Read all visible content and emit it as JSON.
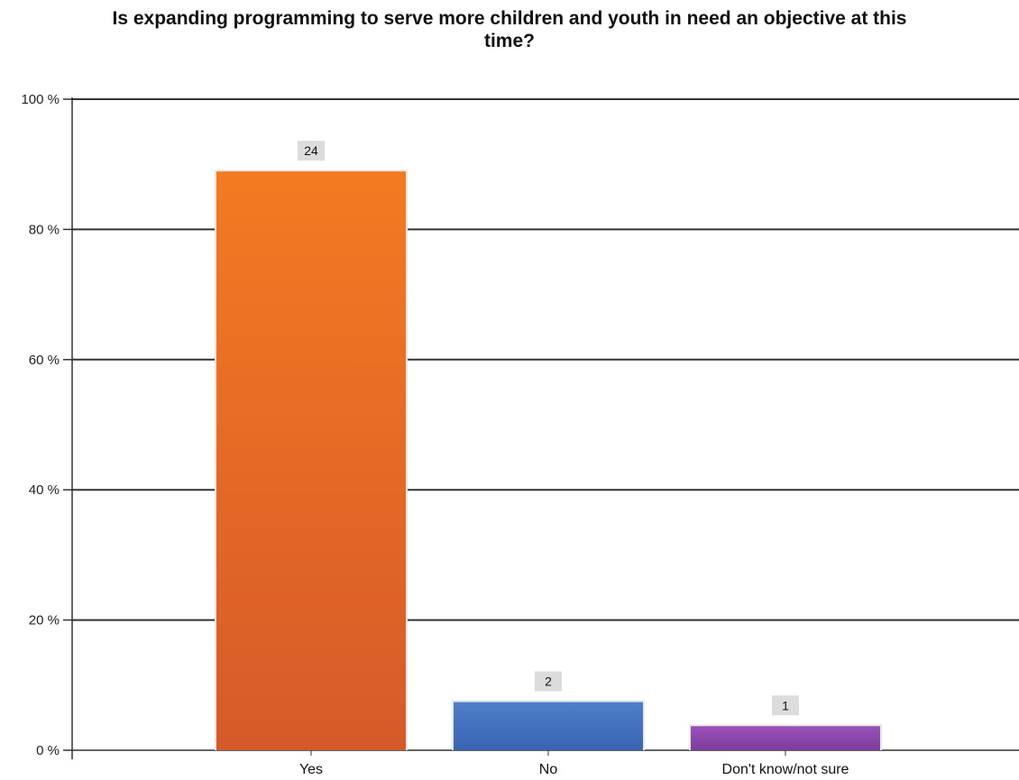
{
  "chart_data": {
    "type": "bar",
    "title_lines": [
      "Is expanding programming to serve more children and youth in need an objective at this",
      "time?"
    ],
    "categories": [
      "Yes",
      "No",
      "Don't know/not sure"
    ],
    "counts": [
      24,
      2,
      1
    ],
    "values": [
      88.9,
      7.4,
      3.7
    ],
    "ylim": [
      0,
      100
    ],
    "yticks": [
      0,
      20,
      40,
      60,
      80,
      100
    ],
    "ytick_labels": [
      "0 %",
      "20 %",
      "40 %",
      "60 %",
      "80 %",
      "100 %"
    ],
    "grid": true,
    "colors": [
      [
        "#f47a22",
        "#d65a29"
      ],
      [
        "#4f7fc9",
        "#3a64b2"
      ],
      [
        "#9a52b8",
        "#7e3b9c"
      ]
    ],
    "label_bg": "#dcdcdc"
  }
}
